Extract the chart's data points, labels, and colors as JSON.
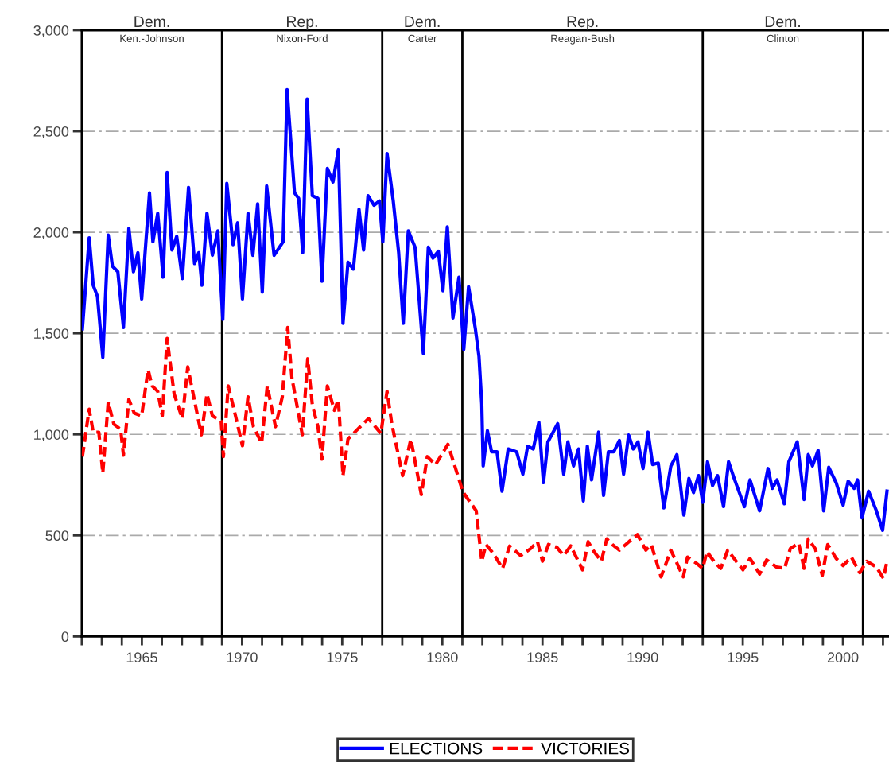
{
  "chart_data": {
    "type": "line",
    "xlim": [
      1962,
      2002.3
    ],
    "ylim": [
      0,
      3000
    ],
    "xticks": [
      {
        "value": 1962,
        "label": null
      },
      {
        "value": 1963,
        "label": null
      },
      {
        "value": 1964,
        "label": null
      },
      1965,
      {
        "value": 1966,
        "label": null
      },
      {
        "value": 1967,
        "label": null
      },
      {
        "value": 1968,
        "label": null
      },
      {
        "value": 1969,
        "label": null
      },
      1970,
      {
        "value": 1971,
        "label": null
      },
      {
        "value": 1972,
        "label": null
      },
      {
        "value": 1973,
        "label": null
      },
      {
        "value": 1974,
        "label": null
      },
      1975,
      {
        "value": 1976,
        "label": null
      },
      {
        "value": 1977,
        "label": null
      },
      {
        "value": 1978,
        "label": null
      },
      {
        "value": 1979,
        "label": null
      },
      1980,
      {
        "value": 1981,
        "label": null
      },
      {
        "value": 1982,
        "label": null
      },
      {
        "value": 1983,
        "label": null
      },
      {
        "value": 1984,
        "label": null
      },
      1985,
      {
        "value": 1986,
        "label": null
      },
      {
        "value": 1987,
        "label": null
      },
      {
        "value": 1988,
        "label": null
      },
      {
        "value": 1989,
        "label": null
      },
      1990,
      {
        "value": 1991,
        "label": null
      },
      {
        "value": 1992,
        "label": null
      },
      {
        "value": 1993,
        "label": null
      },
      {
        "value": 1994,
        "label": null
      },
      1995,
      {
        "value": 1996,
        "label": null
      },
      {
        "value": 1997,
        "label": null
      },
      {
        "value": 1998,
        "label": null
      },
      {
        "value": 1999,
        "label": null
      },
      2000,
      {
        "value": 2001,
        "label": null
      },
      {
        "value": 2002,
        "label": null
      }
    ],
    "yticks": [
      0,
      500,
      {
        "value": 1000,
        "label": "1,000"
      },
      {
        "value": 1500,
        "label": "1,500"
      },
      {
        "value": 2000,
        "label": "2,000"
      },
      {
        "value": 2500,
        "label": "2,500"
      },
      {
        "value": 3000,
        "label": "3,000"
      }
    ],
    "grid": "y",
    "legend": "bottom",
    "marker": "none",
    "ref_lines": [
      {
        "axis": "x",
        "value": 1969,
        "color": "#000000"
      },
      {
        "axis": "x",
        "value": 1977,
        "color": "#000000"
      },
      {
        "axis": "x",
        "value": 1981,
        "color": "#000000"
      },
      {
        "axis": "x",
        "value": 1993,
        "color": "#000000"
      },
      {
        "axis": "x",
        "value": 2001,
        "color": "#000000"
      }
    ],
    "annotations": [
      "Dem.",
      "Ken.-Johnson",
      "Rep.",
      "Nixon-Ford",
      "Dem.",
      "Carter",
      "Rep.",
      "Reagan-Bush",
      "Dem.",
      "Clinton"
    ],
    "series": [
      {
        "name": "ELECTIONS",
        "color": "#0000ff",
        "line_style": "solid",
        "x": [
          1962.03,
          1962.37,
          1962.57,
          1962.78,
          1963.05,
          1963.32,
          1963.53,
          1963.8,
          1964.08,
          1964.35,
          1964.58,
          1964.8,
          1964.99,
          1965.38,
          1965.55,
          1965.79,
          1966.06,
          1966.26,
          1966.5,
          1966.74,
          1967.02,
          1967.33,
          1967.63,
          1967.84,
          1968.0,
          1968.25,
          1968.52,
          1968.79,
          1969.04,
          1969.24,
          1969.55,
          1969.78,
          1970.02,
          1970.3,
          1970.54,
          1970.78,
          1971.01,
          1971.23,
          1971.6,
          1972.05,
          1972.25,
          1972.62,
          1972.83,
          1973.03,
          1973.25,
          1973.51,
          1973.79,
          1973.99,
          1974.26,
          1974.54,
          1974.81,
          1975.04,
          1975.29,
          1975.56,
          1975.84,
          1976.07,
          1976.29,
          1976.59,
          1976.86,
          1977.03,
          1977.24,
          1977.55,
          1977.82,
          1978.05,
          1978.3,
          1978.64,
          1979.05,
          1979.3,
          1979.53,
          1979.8,
          1980.03,
          1980.25,
          1980.53,
          1980.83,
          1981.07,
          1981.31,
          1981.65,
          1981.83,
          1981.97,
          1982.04,
          1982.25,
          1982.46,
          1982.73,
          1982.98,
          1983.29,
          1983.71,
          1984.02,
          1984.26,
          1984.54,
          1984.82,
          1985.05,
          1985.27,
          1985.76,
          1986.06,
          1986.27,
          1986.55,
          1986.8,
          1987.04,
          1987.24,
          1987.45,
          1987.8,
          1988.05,
          1988.29,
          1988.56,
          1988.84,
          1989.05,
          1989.3,
          1989.53,
          1989.77,
          1990.02,
          1990.27,
          1990.5,
          1990.78,
          1991.06,
          1991.41,
          1991.71,
          1992.06,
          1992.31,
          1992.54,
          1992.79,
          1993.0,
          1993.24,
          1993.49,
          1993.74,
          1994.04,
          1994.29,
          1994.57,
          1995.08,
          1995.36,
          1995.84,
          1996.26,
          1996.47,
          1996.71,
          1997.07,
          1997.3,
          1997.72,
          1998.06,
          1998.27,
          1998.48,
          1998.76,
          1999.04,
          1999.29,
          1999.66,
          2000.01,
          2000.26,
          2000.56,
          2000.73,
          2000.95,
          2001.28,
          2001.67,
          2001.98,
          2002.2
        ],
        "values": [
          1522,
          1973,
          1738,
          1684,
          1381,
          1986,
          1832,
          1805,
          1529,
          2020,
          1805,
          1899,
          1670,
          2195,
          1953,
          2094,
          1778,
          2296,
          1912,
          1980,
          1771,
          2222,
          1845,
          1899,
          1738,
          2094,
          1886,
          2007,
          1569,
          2242,
          1939,
          2047,
          1670,
          2094,
          1886,
          2141,
          1704,
          2229,
          1886,
          1953,
          2706,
          2195,
          2168,
          1899,
          2659,
          2181,
          2168,
          1758,
          2316,
          2249,
          2410,
          1549,
          1852,
          1818,
          2114,
          1912,
          2181,
          2134,
          2155,
          1953,
          2390,
          2155,
          1899,
          1549,
          2007,
          1926,
          1401,
          1926,
          1872,
          1906,
          1711,
          2027,
          1576,
          1778,
          1421,
          1731,
          1522,
          1386,
          1150,
          844,
          1018,
          914,
          914,
          719,
          928,
          914,
          803,
          942,
          928,
          1060,
          761,
          963,
          1053,
          803,
          963,
          844,
          928,
          671,
          942,
          775,
          1011,
          698,
          914,
          914,
          970,
          803,
          997,
          928,
          963,
          831,
          1011,
          851,
          858,
          636,
          844,
          900,
          601,
          782,
          712,
          796,
          664,
          865,
          747,
          796,
          643,
          865,
          782,
          643,
          775,
          622,
          831,
          733,
          775,
          657,
          865,
          963,
          678,
          900,
          844,
          921,
          622,
          837,
          761,
          650,
          768,
          733,
          775,
          587,
          719,
          622,
          525,
          719
        ]
      },
      {
        "name": "VICTORIES",
        "color": "#ff0000",
        "line_style": "dashed",
        "x": [
          1962.03,
          1962.37,
          1962.57,
          1962.85,
          1963.05,
          1963.32,
          1963.6,
          1963.94,
          1964.08,
          1964.35,
          1964.62,
          1964.99,
          1965.31,
          1965.51,
          1965.79,
          1966.02,
          1966.26,
          1966.61,
          1967.02,
          1967.29,
          1967.56,
          1967.97,
          1968.25,
          1968.52,
          1968.96,
          1969.07,
          1969.31,
          1969.61,
          1970.02,
          1970.3,
          1970.57,
          1970.98,
          1971.26,
          1971.67,
          1972.01,
          1972.28,
          1972.49,
          1973.01,
          1973.28,
          1973.51,
          1973.79,
          1973.99,
          1974.26,
          1974.61,
          1974.81,
          1975.04,
          1975.29,
          1975.77,
          1976.31,
          1976.93,
          1977.24,
          1977.48,
          1978.02,
          1978.43,
          1978.95,
          1979.25,
          1979.66,
          1980.28,
          1981.03,
          1981.69,
          1981.97,
          1982.18,
          1982.53,
          1983.01,
          1983.36,
          1983.91,
          1984.4,
          1984.75,
          1985.0,
          1985.3,
          1985.72,
          1986.06,
          1986.41,
          1987.0,
          1987.28,
          1987.52,
          1987.94,
          1988.21,
          1988.49,
          1988.84,
          1989.32,
          1989.74,
          1990.16,
          1990.43,
          1990.92,
          1991.41,
          1992.03,
          1992.24,
          1992.65,
          1993.0,
          1993.21,
          1993.56,
          1993.9,
          1994.25,
          1994.67,
          1995.01,
          1995.36,
          1995.84,
          1996.19,
          1996.68,
          1997.09,
          1997.37,
          1997.79,
          1998.06,
          1998.27,
          1998.62,
          1998.97,
          1999.24,
          1999.66,
          2000.01,
          2000.42,
          2000.84,
          2001.19,
          2001.67,
          2002.02,
          2002.2
        ],
        "values": [
          890,
          1125,
          1011,
          1011,
          809,
          1159,
          1051,
          1025,
          897,
          1173,
          1105,
          1092,
          1321,
          1240,
          1213,
          1092,
          1475,
          1200,
          1078,
          1334,
          1200,
          998,
          1200,
          1092,
          1065,
          890,
          1240,
          1119,
          944,
          1186,
          1038,
          957,
          1240,
          1038,
          1186,
          1529,
          1280,
          998,
          1374,
          1146,
          1038,
          877,
          1240,
          1119,
          1173,
          796,
          977,
          1025,
          1078,
          1005,
          1213,
          1051,
          796,
          977,
          702,
          890,
          850,
          951,
          715,
          622,
          372,
          455,
          413,
          337,
          448,
          400,
          434,
          469,
          372,
          455,
          441,
          400,
          448,
          330,
          469,
          427,
          372,
          483,
          455,
          427,
          469,
          504,
          427,
          455,
          295,
          427,
          295,
          393,
          365,
          337,
          420,
          372,
          337,
          427,
          372,
          330,
          386,
          309,
          379,
          344,
          337,
          434,
          462,
          337,
          483,
          434,
          302,
          455,
          386,
          351,
          393,
          316,
          372,
          344,
          288,
          372
        ]
      }
    ]
  }
}
